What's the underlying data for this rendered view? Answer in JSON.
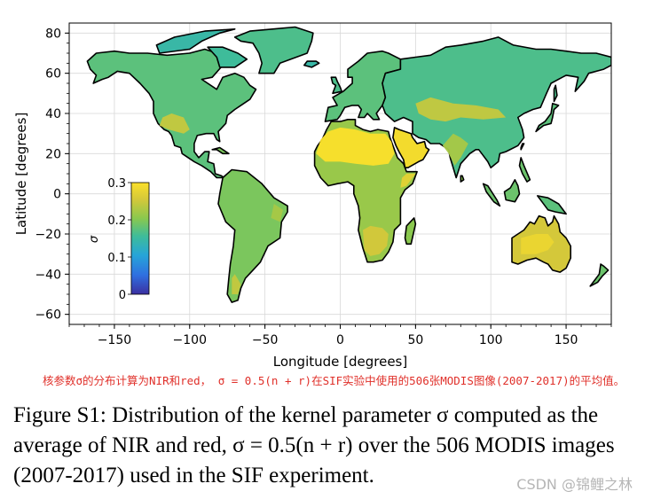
{
  "chart_data": {
    "type": "heatmap",
    "title": "",
    "xlabel": "Longitude [degrees]",
    "ylabel": "Latitude [degrees]",
    "xlim": [
      -180,
      180
    ],
    "ylim": [
      -65,
      85
    ],
    "x_ticks": [
      -150,
      -100,
      -50,
      0,
      50,
      100,
      150
    ],
    "y_ticks": [
      -60,
      -40,
      -20,
      0,
      20,
      40,
      60,
      80
    ],
    "grid": true,
    "colorbar": {
      "label": "σ",
      "min": 0,
      "max": 0.3,
      "ticks": [
        0,
        0.1,
        0.2,
        0.3
      ],
      "tick_labels": [
        "0",
        "0.1",
        "0.2",
        "0.3"
      ],
      "placement": "inside-left",
      "colors": [
        "#3b2fa0",
        "#2f6fe0",
        "#26a5d8",
        "#3ebc9a",
        "#8ac84e",
        "#d4c83a",
        "#fbe02a"
      ]
    },
    "regions": [
      {
        "label": "North America",
        "value": 0.17
      },
      {
        "label": "Greenland",
        "value": 0.16
      },
      {
        "label": "South America",
        "value": 0.19
      },
      {
        "label": "Europe",
        "value": 0.17
      },
      {
        "label": "Russia",
        "value": 0.16
      },
      {
        "label": "Sahara",
        "value": 0.3
      },
      {
        "label": "Arabian Peninsula",
        "value": 0.29
      },
      {
        "label": "Central Africa",
        "value": 0.21
      },
      {
        "label": "Southern Africa",
        "value": 0.25
      },
      {
        "label": "Central Asia",
        "value": 0.24
      },
      {
        "label": "South Asia",
        "value": 0.22
      },
      {
        "label": "Southeast Asia",
        "value": 0.18
      },
      {
        "label": "Australia",
        "value": 0.25
      },
      {
        "label": "Madagascar",
        "value": 0.2
      },
      {
        "label": "Japan",
        "value": 0.17
      },
      {
        "label": "New Zealand",
        "value": 0.18
      }
    ]
  },
  "annotation": "核参数σ的分布计算为NIR和red， σ = 0.5(n + r)在SIF实验中使用的506张MODIS图像(2007-2017)的平均值。",
  "caption": "Figure S1: Distribution of the kernel parameter σ computed as the average of NIR and red, σ = 0.5(n + r) over the 506 MODIS images (2007-2017) used in the SIF experiment.",
  "watermark": "CSDN @锦鲤之林"
}
